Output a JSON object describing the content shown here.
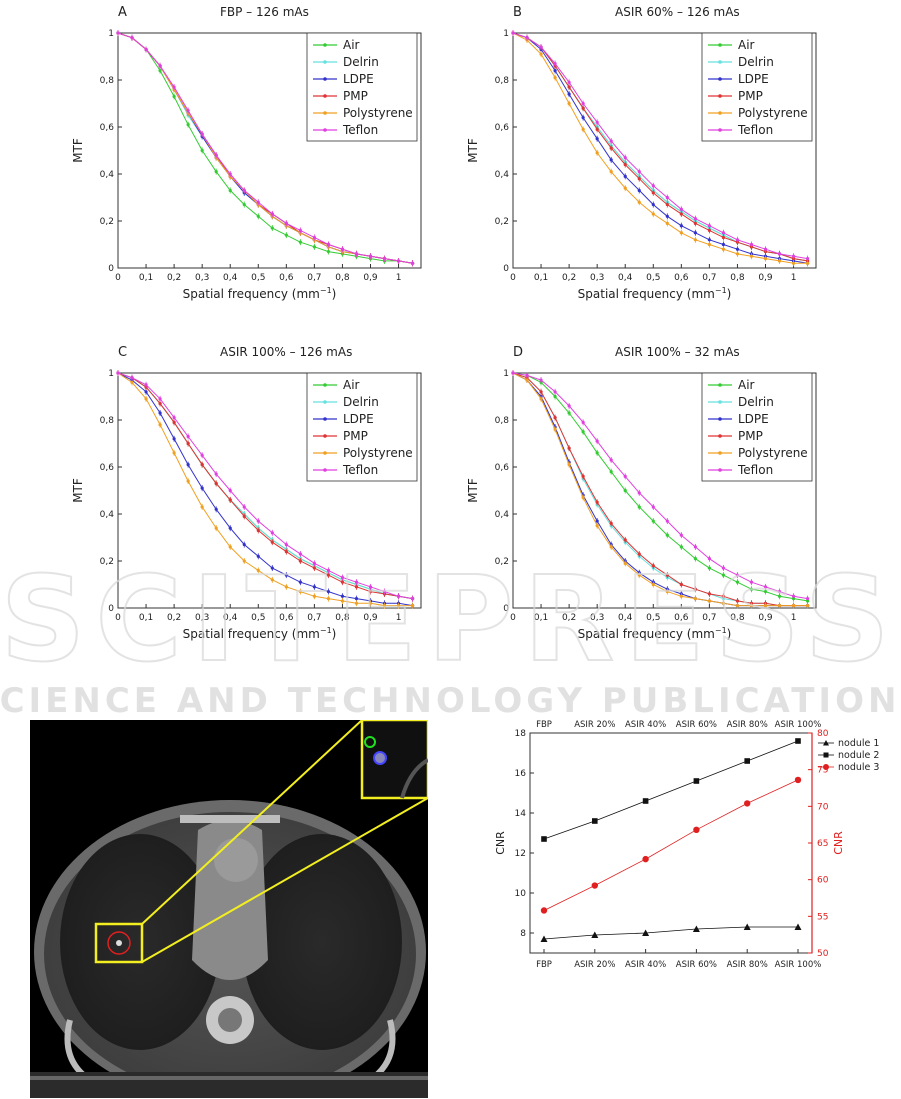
{
  "watermark": {
    "line1": "SCITEPRESS",
    "line2": "SCIENCE AND TECHNOLOGY PUBLICATIONS"
  },
  "mtf_panels": [
    {
      "letter": "A",
      "title": "FBP – 126 mAs",
      "xlabel": "Spatial frequency  (mm",
      "xlabel_sup": "−1",
      "xlabel_end": ")",
      "ylabel": "MTF",
      "xlim": [
        0,
        1.08
      ],
      "ylim": [
        0,
        1
      ],
      "xticks": [
        "0",
        "0,1",
        "0,2",
        "0,3",
        "0,4",
        "0,5",
        "0,6",
        "0,7",
        "0,8",
        "0,9",
        "1"
      ],
      "yticks": [
        "0",
        "0,2",
        "0,4",
        "0,6",
        "0,8",
        "1"
      ],
      "legend": [
        "Air",
        "Delrin",
        "LDPE",
        "PMP",
        "Polystyrene",
        "Teflon"
      ],
      "x": [
        0,
        0.05,
        0.1,
        0.15,
        0.2,
        0.25,
        0.3,
        0.35,
        0.4,
        0.45,
        0.5,
        0.55,
        0.6,
        0.65,
        0.7,
        0.75,
        0.8,
        0.85,
        0.9,
        0.95,
        1.0,
        1.05
      ],
      "series": [
        {
          "name": "Air",
          "values": [
            1,
            0.98,
            0.93,
            0.84,
            0.73,
            0.61,
            0.5,
            0.41,
            0.33,
            0.27,
            0.22,
            0.17,
            0.14,
            0.11,
            0.09,
            0.07,
            0.06,
            0.05,
            0.04,
            0.03,
            0.03,
            0.02
          ]
        },
        {
          "name": "Delrin",
          "values": [
            1,
            0.98,
            0.93,
            0.86,
            0.76,
            0.65,
            0.56,
            0.47,
            0.39,
            0.32,
            0.27,
            0.22,
            0.18,
            0.15,
            0.12,
            0.09,
            0.07,
            0.06,
            0.05,
            0.04,
            0.03,
            0.02
          ]
        },
        {
          "name": "LDPE",
          "values": [
            1,
            0.98,
            0.93,
            0.86,
            0.76,
            0.66,
            0.56,
            0.47,
            0.39,
            0.32,
            0.27,
            0.22,
            0.18,
            0.15,
            0.12,
            0.09,
            0.07,
            0.06,
            0.05,
            0.04,
            0.03,
            0.02
          ]
        },
        {
          "name": "PMP",
          "values": [
            1,
            0.98,
            0.93,
            0.86,
            0.76,
            0.66,
            0.57,
            0.48,
            0.39,
            0.33,
            0.27,
            0.23,
            0.19,
            0.15,
            0.12,
            0.1,
            0.08,
            0.06,
            0.05,
            0.04,
            0.03,
            0.02
          ]
        },
        {
          "name": "Polystyrene",
          "values": [
            1,
            0.98,
            0.93,
            0.86,
            0.76,
            0.66,
            0.57,
            0.47,
            0.39,
            0.33,
            0.27,
            0.22,
            0.18,
            0.15,
            0.12,
            0.09,
            0.07,
            0.06,
            0.05,
            0.04,
            0.03,
            0.02
          ]
        },
        {
          "name": "Teflon",
          "values": [
            1,
            0.98,
            0.93,
            0.86,
            0.77,
            0.67,
            0.57,
            0.48,
            0.4,
            0.33,
            0.28,
            0.23,
            0.19,
            0.16,
            0.13,
            0.1,
            0.08,
            0.06,
            0.05,
            0.04,
            0.03,
            0.02
          ]
        }
      ]
    },
    {
      "letter": "B",
      "title": "ASIR 60% – 126 mAs",
      "xlabel": "Spatial frequency  (mm",
      "xlabel_sup": "−1",
      "xlabel_end": ")",
      "ylabel": "MTF",
      "xlim": [
        0,
        1.08
      ],
      "ylim": [
        0,
        1
      ],
      "xticks": [
        "0",
        "0,1",
        "0,2",
        "0,3",
        "0,4",
        "0,5",
        "0,6",
        "0,7",
        "0,8",
        "0,9",
        "1"
      ],
      "yticks": [
        "0",
        "0,2",
        "0,4",
        "0,6",
        "0,8",
        "1"
      ],
      "legend": [
        "Air",
        "Delrin",
        "LDPE",
        "PMP",
        "Polystyrene",
        "Teflon"
      ],
      "x": [
        0,
        0.05,
        0.1,
        0.15,
        0.2,
        0.25,
        0.3,
        0.35,
        0.4,
        0.45,
        0.5,
        0.55,
        0.6,
        0.65,
        0.7,
        0.75,
        0.8,
        0.85,
        0.9,
        0.95,
        1.0,
        1.05
      ],
      "series": [
        {
          "name": "Air",
          "values": [
            1,
            0.98,
            0.94,
            0.86,
            0.77,
            0.68,
            0.6,
            0.52,
            0.45,
            0.39,
            0.33,
            0.28,
            0.24,
            0.2,
            0.17,
            0.14,
            0.11,
            0.09,
            0.07,
            0.06,
            0.04,
            0.03
          ]
        },
        {
          "name": "Delrin",
          "values": [
            1,
            0.98,
            0.94,
            0.86,
            0.77,
            0.68,
            0.6,
            0.52,
            0.45,
            0.39,
            0.33,
            0.28,
            0.24,
            0.2,
            0.17,
            0.14,
            0.11,
            0.09,
            0.07,
            0.06,
            0.04,
            0.03
          ]
        },
        {
          "name": "LDPE",
          "values": [
            1,
            0.98,
            0.93,
            0.84,
            0.74,
            0.64,
            0.55,
            0.46,
            0.39,
            0.33,
            0.27,
            0.22,
            0.18,
            0.15,
            0.12,
            0.1,
            0.08,
            0.06,
            0.05,
            0.04,
            0.03,
            0.02
          ]
        },
        {
          "name": "PMP",
          "values": [
            1,
            0.98,
            0.94,
            0.86,
            0.77,
            0.68,
            0.59,
            0.51,
            0.44,
            0.38,
            0.32,
            0.27,
            0.23,
            0.19,
            0.16,
            0.13,
            0.11,
            0.09,
            0.07,
            0.06,
            0.04,
            0.03
          ]
        },
        {
          "name": "Polystyrene",
          "values": [
            1,
            0.97,
            0.91,
            0.81,
            0.7,
            0.59,
            0.49,
            0.41,
            0.34,
            0.28,
            0.23,
            0.19,
            0.15,
            0.12,
            0.1,
            0.08,
            0.06,
            0.05,
            0.04,
            0.03,
            0.02,
            0.02
          ]
        },
        {
          "name": "Teflon",
          "values": [
            1,
            0.98,
            0.94,
            0.87,
            0.79,
            0.7,
            0.62,
            0.54,
            0.47,
            0.41,
            0.35,
            0.3,
            0.25,
            0.21,
            0.18,
            0.15,
            0.12,
            0.1,
            0.08,
            0.06,
            0.05,
            0.04
          ]
        }
      ]
    },
    {
      "letter": "C",
      "title": "ASIR 100% – 126 mAs",
      "xlabel": "Spatial frequency  (mm",
      "xlabel_sup": "−1",
      "xlabel_end": ")",
      "ylabel": "MTF",
      "xlim": [
        0,
        1.08
      ],
      "ylim": [
        0,
        1
      ],
      "xticks": [
        "0",
        "0,1",
        "0,2",
        "0,3",
        "0,4",
        "0,5",
        "0,6",
        "0,7",
        "0,8",
        "0,9",
        "1"
      ],
      "yticks": [
        "0",
        "0,2",
        "0,4",
        "0,6",
        "0,8",
        "1"
      ],
      "legend": [
        "Air",
        "Delrin",
        "LDPE",
        "PMP",
        "Polystyrene",
        "Teflon"
      ],
      "x": [
        0,
        0.05,
        0.1,
        0.15,
        0.2,
        0.25,
        0.3,
        0.35,
        0.4,
        0.45,
        0.5,
        0.55,
        0.6,
        0.65,
        0.7,
        0.75,
        0.8,
        0.85,
        0.9,
        0.95,
        1.0,
        1.05
      ],
      "series": [
        {
          "name": "Air",
          "values": [
            1,
            0.98,
            0.94,
            0.87,
            0.79,
            0.7,
            0.61,
            0.53,
            0.46,
            0.4,
            0.34,
            0.29,
            0.25,
            0.21,
            0.18,
            0.15,
            0.12,
            0.1,
            0.08,
            0.06,
            0.05,
            0.04
          ]
        },
        {
          "name": "Delrin",
          "values": [
            1,
            0.98,
            0.94,
            0.87,
            0.79,
            0.7,
            0.61,
            0.53,
            0.46,
            0.4,
            0.34,
            0.29,
            0.25,
            0.21,
            0.18,
            0.15,
            0.12,
            0.1,
            0.08,
            0.06,
            0.05,
            0.04
          ]
        },
        {
          "name": "LDPE",
          "values": [
            1,
            0.97,
            0.92,
            0.83,
            0.72,
            0.61,
            0.51,
            0.42,
            0.34,
            0.27,
            0.22,
            0.17,
            0.14,
            0.11,
            0.09,
            0.07,
            0.05,
            0.04,
            0.03,
            0.02,
            0.02,
            0.01
          ]
        },
        {
          "name": "PMP",
          "values": [
            1,
            0.98,
            0.94,
            0.87,
            0.79,
            0.7,
            0.61,
            0.53,
            0.46,
            0.39,
            0.33,
            0.28,
            0.24,
            0.2,
            0.17,
            0.14,
            0.11,
            0.09,
            0.07,
            0.06,
            0.05,
            0.04
          ]
        },
        {
          "name": "Polystyrene",
          "values": [
            1,
            0.96,
            0.89,
            0.78,
            0.66,
            0.54,
            0.43,
            0.34,
            0.26,
            0.2,
            0.16,
            0.12,
            0.09,
            0.07,
            0.05,
            0.04,
            0.03,
            0.02,
            0.02,
            0.01,
            0.01,
            0.01
          ]
        },
        {
          "name": "Teflon",
          "values": [
            1,
            0.98,
            0.95,
            0.89,
            0.81,
            0.73,
            0.65,
            0.57,
            0.5,
            0.43,
            0.37,
            0.32,
            0.27,
            0.23,
            0.19,
            0.16,
            0.13,
            0.11,
            0.09,
            0.07,
            0.05,
            0.04
          ]
        }
      ]
    },
    {
      "letter": "D",
      "title": "ASIR 100% – 32 mAs",
      "xlabel": "Spatial frequency  (mm",
      "xlabel_sup": "−1",
      "xlabel_end": ")",
      "ylabel": "MTF",
      "xlim": [
        0,
        1.08
      ],
      "ylim": [
        0,
        1
      ],
      "xticks": [
        "0",
        "0,1",
        "0,2",
        "0,3",
        "0,4",
        "0,5",
        "0,6",
        "0,7",
        "0,8",
        "0,9",
        "1"
      ],
      "yticks": [
        "0",
        "0,2",
        "0,4",
        "0,6",
        "0,8",
        "1"
      ],
      "legend": [
        "Air",
        "Delrin",
        "LDPE",
        "PMP",
        "Polystyrene",
        "Teflon"
      ],
      "x": [
        0,
        0.05,
        0.1,
        0.15,
        0.2,
        0.25,
        0.3,
        0.35,
        0.4,
        0.45,
        0.5,
        0.55,
        0.6,
        0.65,
        0.7,
        0.75,
        0.8,
        0.85,
        0.9,
        0.95,
        1.0,
        1.05
      ],
      "series": [
        {
          "name": "Air",
          "values": [
            1,
            0.99,
            0.96,
            0.9,
            0.83,
            0.75,
            0.66,
            0.58,
            0.5,
            0.43,
            0.37,
            0.31,
            0.26,
            0.21,
            0.17,
            0.14,
            0.11,
            0.08,
            0.07,
            0.05,
            0.04,
            0.03
          ]
        },
        {
          "name": "Delrin",
          "values": [
            1,
            0.98,
            0.92,
            0.81,
            0.68,
            0.55,
            0.44,
            0.35,
            0.28,
            0.22,
            0.17,
            0.13,
            0.1,
            0.08,
            0.06,
            0.04,
            0.03,
            0.02,
            0.02,
            0.01,
            0.01,
            0.01
          ]
        },
        {
          "name": "LDPE",
          "values": [
            1,
            0.97,
            0.9,
            0.77,
            0.62,
            0.48,
            0.37,
            0.27,
            0.2,
            0.15,
            0.11,
            0.08,
            0.06,
            0.04,
            0.03,
            0.02,
            0.01,
            0.01,
            0.01,
            0.01,
            0.01,
            0.01
          ]
        },
        {
          "name": "PMP",
          "values": [
            1,
            0.98,
            0.92,
            0.81,
            0.68,
            0.56,
            0.45,
            0.36,
            0.29,
            0.23,
            0.18,
            0.14,
            0.1,
            0.08,
            0.06,
            0.05,
            0.03,
            0.02,
            0.02,
            0.01,
            0.01,
            0.01
          ]
        },
        {
          "name": "Polystyrene",
          "values": [
            1,
            0.97,
            0.89,
            0.76,
            0.61,
            0.47,
            0.35,
            0.26,
            0.19,
            0.14,
            0.1,
            0.07,
            0.05,
            0.04,
            0.03,
            0.02,
            0.01,
            0.01,
            0.01,
            0.01,
            0.01,
            0.01
          ]
        },
        {
          "name": "Teflon",
          "values": [
            1,
            0.99,
            0.97,
            0.92,
            0.86,
            0.79,
            0.71,
            0.63,
            0.56,
            0.49,
            0.43,
            0.37,
            0.31,
            0.26,
            0.21,
            0.17,
            0.14,
            0.11,
            0.09,
            0.07,
            0.05,
            0.04
          ]
        }
      ]
    }
  ],
  "colors": {
    "Air": "#33cc33",
    "Delrin": "#66e0e0",
    "LDPE": "#3333cc",
    "PMP": "#e03333",
    "Polystyrene": "#f0a020",
    "Teflon": "#e040e0",
    "nodule1": "#111111",
    "nodule2": "#111111",
    "nodule3": "#e02020"
  },
  "chart_data": {
    "type": "line",
    "categories": [
      "FBP",
      "ASIR 20%",
      "ASIR 40%",
      "ASIR 60%",
      "ASIR 80%",
      "ASIR 100%"
    ],
    "ylabel": "CNR",
    "ylabel_right": "CNR",
    "ylim": [
      7,
      18
    ],
    "ylim_right": [
      50,
      80
    ],
    "yticks": [
      "8",
      "10",
      "12",
      "14",
      "16",
      "18"
    ],
    "yticks_right": [
      "50",
      "55",
      "60",
      "65",
      "70",
      "75",
      "80"
    ],
    "legend": [
      "nodule 1",
      "nodule 2",
      "nodule 3"
    ],
    "series": [
      {
        "name": "nodule 1",
        "axis": "left",
        "values": [
          7.7,
          7.9,
          8.0,
          8.2,
          8.3,
          8.3
        ]
      },
      {
        "name": "nodule 2",
        "axis": "left",
        "values": [
          12.7,
          13.6,
          14.6,
          15.6,
          16.6,
          17.6
        ]
      },
      {
        "name": "nodule 3",
        "axis": "right",
        "values": [
          55.8,
          59.2,
          62.8,
          66.8,
          70.4,
          73.6
        ]
      }
    ]
  }
}
